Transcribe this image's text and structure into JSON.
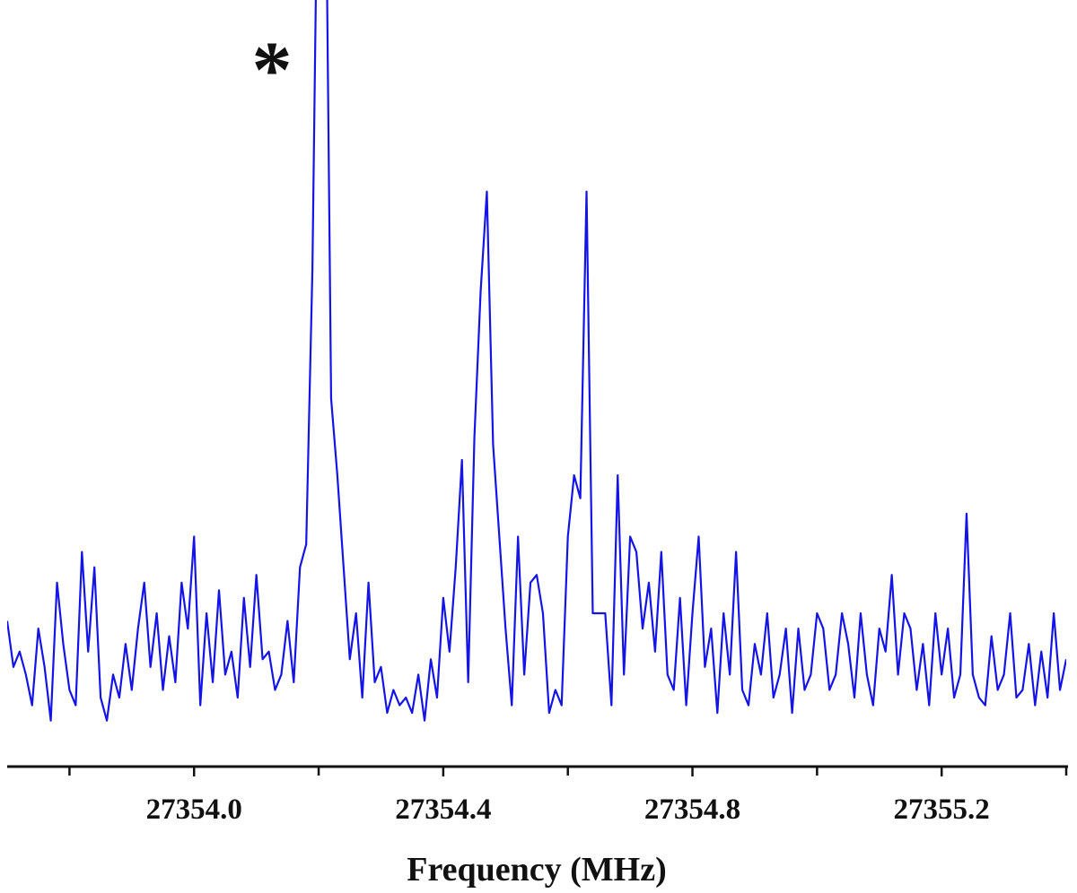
{
  "chart_data": {
    "type": "line",
    "x_label": "Frequency (MHz)",
    "annotation": "*",
    "color": "#1414e6",
    "xlim": [
      27353.7,
      27355.4
    ],
    "ylim": [
      0,
      100
    ],
    "xticks": [
      {
        "value": 27354.0,
        "label": "27354.0"
      },
      {
        "value": 27354.4,
        "label": "27354.4"
      },
      {
        "value": 27354.8,
        "label": "27354.8"
      },
      {
        "value": 27355.2,
        "label": "27355.2"
      }
    ],
    "xminorticks": [
      27353.8,
      27354.2,
      27354.6,
      27355.0,
      27355.4
    ],
    "x": [
      27353.7,
      27353.71,
      27353.72,
      27353.73,
      27353.74,
      27353.75,
      27353.76,
      27353.77,
      27353.78,
      27353.79,
      27353.8,
      27353.81,
      27353.82,
      27353.83,
      27353.84,
      27353.85,
      27353.86,
      27353.87,
      27353.88,
      27353.89,
      27353.9,
      27353.91,
      27353.92,
      27353.93,
      27353.94,
      27353.95,
      27353.96,
      27353.97,
      27353.98,
      27353.99,
      27354.0,
      27354.01,
      27354.02,
      27354.03,
      27354.04,
      27354.05,
      27354.06,
      27354.07,
      27354.08,
      27354.09,
      27354.1,
      27354.11,
      27354.12,
      27354.13,
      27354.14,
      27354.15,
      27354.16,
      27354.17,
      27354.18,
      27354.19,
      27354.2,
      27354.21,
      27354.22,
      27354.23,
      27354.24,
      27354.25,
      27354.26,
      27354.27,
      27354.28,
      27354.29,
      27354.3,
      27354.31,
      27354.32,
      27354.33,
      27354.34,
      27354.35,
      27354.36,
      27354.37,
      27354.38,
      27354.39,
      27354.4,
      27354.41,
      27354.42,
      27354.43,
      27354.44,
      27354.45,
      27354.46,
      27354.47,
      27354.48,
      27354.49,
      27354.5,
      27354.51,
      27354.52,
      27354.53,
      27354.54,
      27354.55,
      27354.56,
      27354.57,
      27354.58,
      27354.59,
      27354.6,
      27354.61,
      27354.62,
      27354.63,
      27354.64,
      27354.65,
      27354.66,
      27354.67,
      27354.68,
      27354.69,
      27354.7,
      27354.71,
      27354.72,
      27354.73,
      27354.74,
      27354.75,
      27354.76,
      27354.77,
      27354.78,
      27354.79,
      27354.8,
      27354.81,
      27354.82,
      27354.83,
      27354.84,
      27354.85,
      27354.86,
      27354.87,
      27354.88,
      27354.89,
      27354.9,
      27354.91,
      27354.92,
      27354.93,
      27354.94,
      27354.95,
      27354.96,
      27354.97,
      27354.98,
      27354.99,
      27355.0,
      27355.01,
      27355.02,
      27355.03,
      27355.04,
      27355.05,
      27355.06,
      27355.07,
      27355.08,
      27355.09,
      27355.1,
      27355.11,
      27355.12,
      27355.13,
      27355.14,
      27355.15,
      27355.16,
      27355.17,
      27355.18,
      27355.19,
      27355.2,
      27355.21,
      27355.22,
      27355.23,
      27355.24,
      27355.25,
      27355.26,
      27355.27,
      27355.28,
      27355.29,
      27355.3,
      27355.31,
      27355.32,
      27355.33,
      27355.34,
      27355.35,
      27355.36,
      27355.37,
      27355.38,
      27355.39,
      27355.4
    ],
    "values": [
      19,
      13,
      15,
      12,
      8,
      18,
      13,
      6,
      24,
      16,
      10,
      8,
      28,
      15,
      26,
      9,
      6,
      12,
      9,
      16,
      10,
      18,
      24,
      13,
      20,
      10,
      17,
      11,
      24,
      18,
      30,
      8,
      20,
      11,
      23,
      12,
      15,
      9,
      22,
      13,
      25,
      14,
      15,
      10,
      12,
      19,
      11,
      26,
      29,
      65,
      130,
      130,
      48,
      38,
      26,
      14,
      20,
      9,
      24,
      11,
      13,
      7,
      10,
      8,
      9,
      7,
      12,
      6,
      14,
      9,
      22,
      15,
      26,
      40,
      11,
      43,
      62,
      75,
      42,
      30,
      18,
      8,
      30,
      12,
      24,
      25,
      20,
      7,
      10,
      8,
      30,
      38,
      35,
      75,
      20,
      20,
      20,
      8,
      38,
      12,
      30,
      28,
      18,
      24,
      15,
      28,
      12,
      10,
      22,
      8,
      20,
      30,
      13,
      18,
      7,
      20,
      12,
      28,
      10,
      8,
      16,
      12,
      20,
      9,
      12,
      18,
      7,
      18,
      10,
      12,
      20,
      18,
      10,
      12,
      20,
      16,
      9,
      20,
      12,
      8,
      18,
      15,
      25,
      12,
      20,
      18,
      10,
      16,
      8,
      20,
      12,
      18,
      9,
      12,
      33,
      12,
      9,
      8,
      17,
      10,
      12,
      20,
      9,
      10,
      16,
      8,
      15,
      9,
      20,
      10,
      14
    ]
  }
}
